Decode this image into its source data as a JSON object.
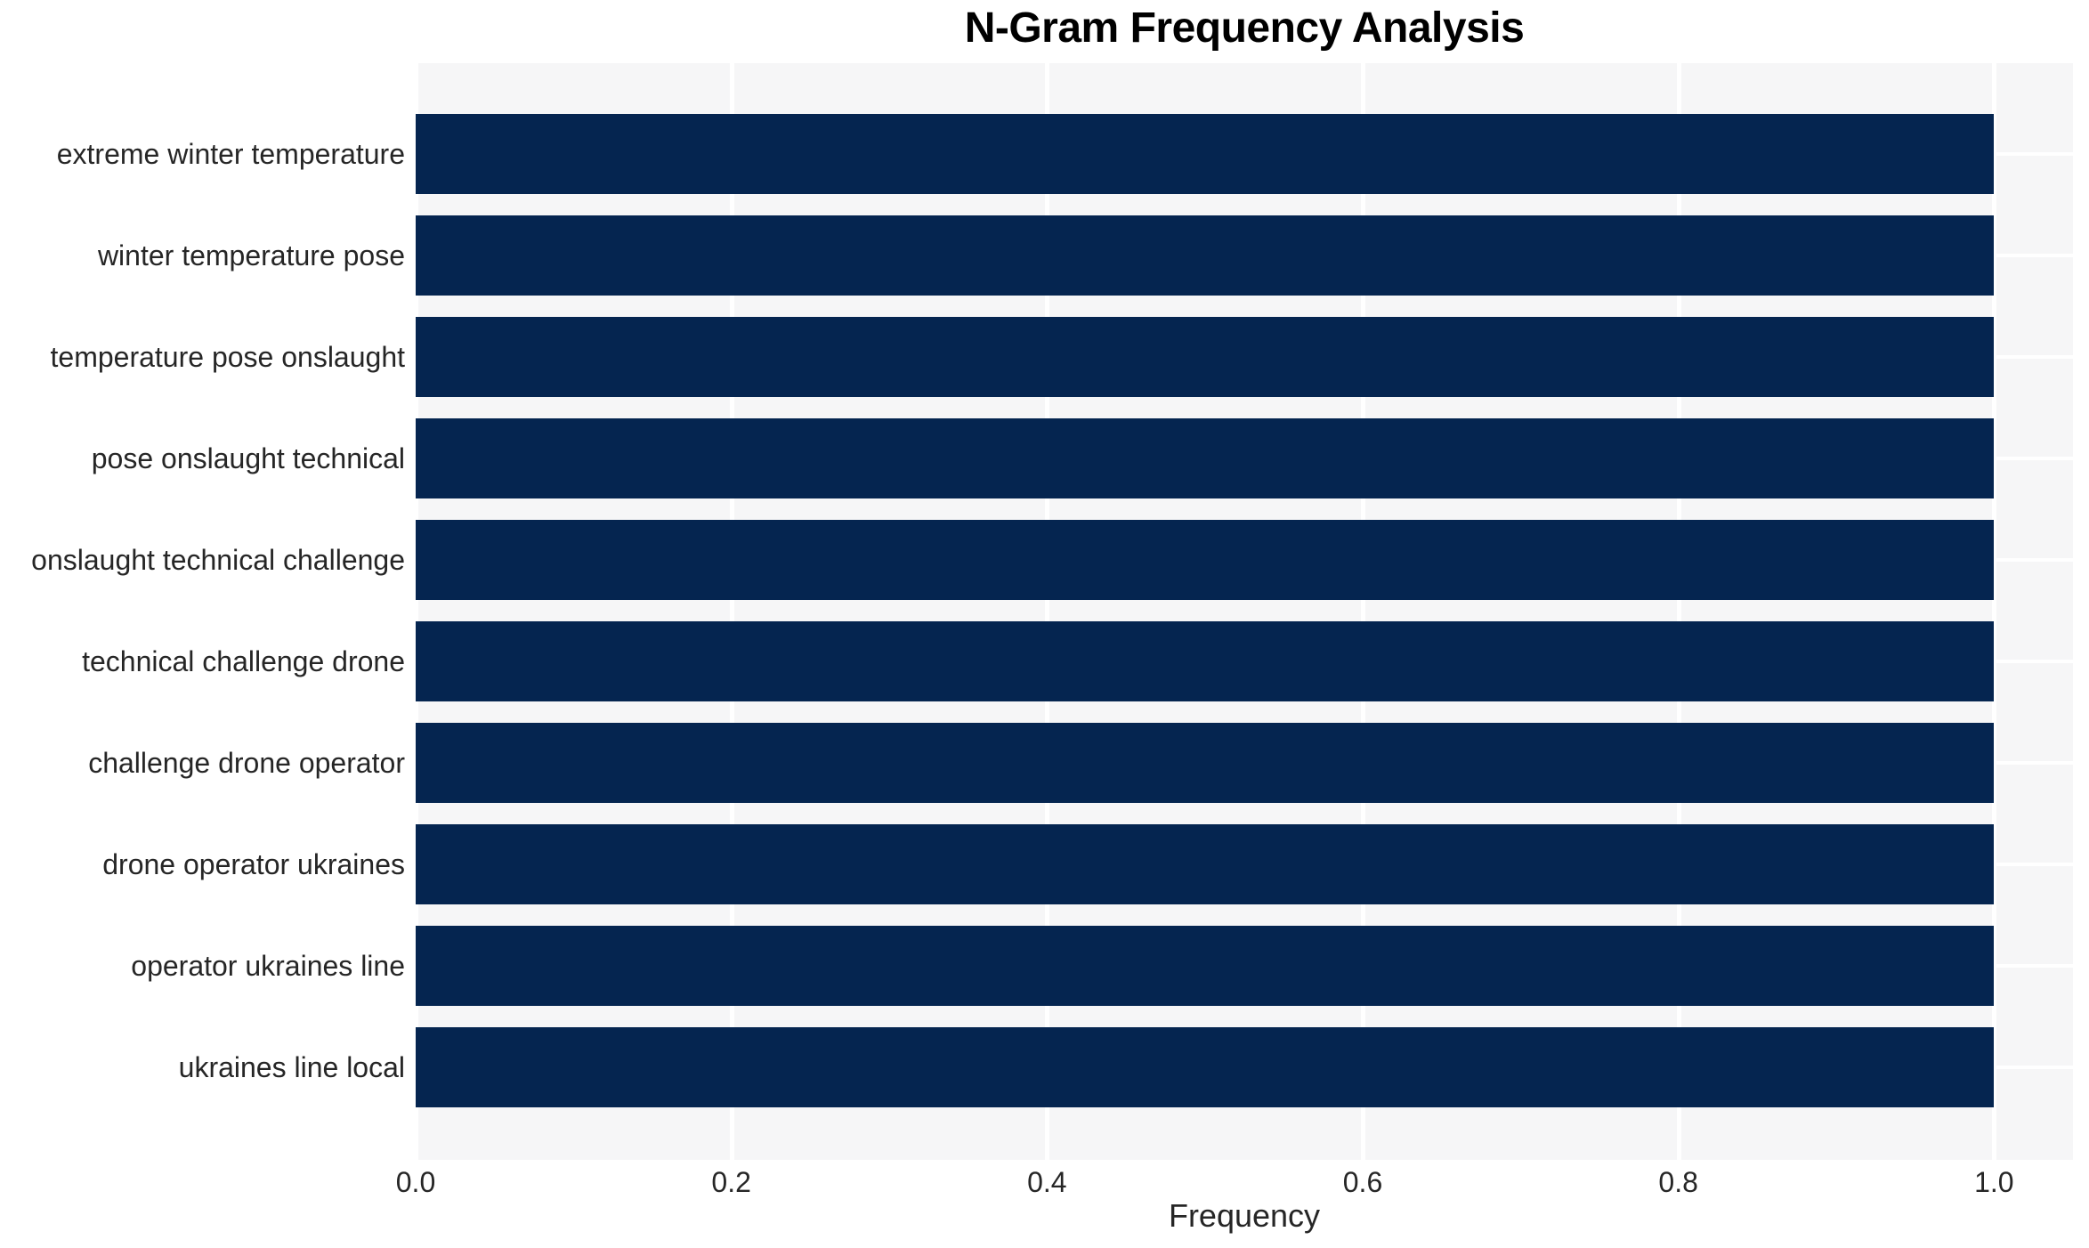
{
  "chart_data": {
    "type": "bar",
    "orientation": "horizontal",
    "title": "N-Gram Frequency Analysis",
    "xlabel": "Frequency",
    "ylabel": "",
    "categories": [
      "extreme winter temperature",
      "winter temperature pose",
      "temperature pose onslaught",
      "pose onslaught technical",
      "onslaught technical challenge",
      "technical challenge drone",
      "challenge drone operator",
      "drone operator ukraines",
      "operator ukraines line",
      "ukraines line local"
    ],
    "values": [
      1.0,
      1.0,
      1.0,
      1.0,
      1.0,
      1.0,
      1.0,
      1.0,
      1.0,
      1.0
    ],
    "xticks": [
      0.0,
      0.2,
      0.4,
      0.6,
      0.8,
      1.0
    ],
    "xtick_labels": [
      "0.0",
      "0.2",
      "0.4",
      "0.6",
      "0.8",
      "1.0"
    ],
    "xlim": [
      0,
      1.05
    ],
    "grid": true,
    "legend": false,
    "colors": {
      "bar": "#052550",
      "plot_background": "#f6f6f7",
      "figure_background": "#ffffff",
      "gridline": "#ffffff",
      "tick_text": "#262626",
      "title_text": "#000000"
    }
  }
}
